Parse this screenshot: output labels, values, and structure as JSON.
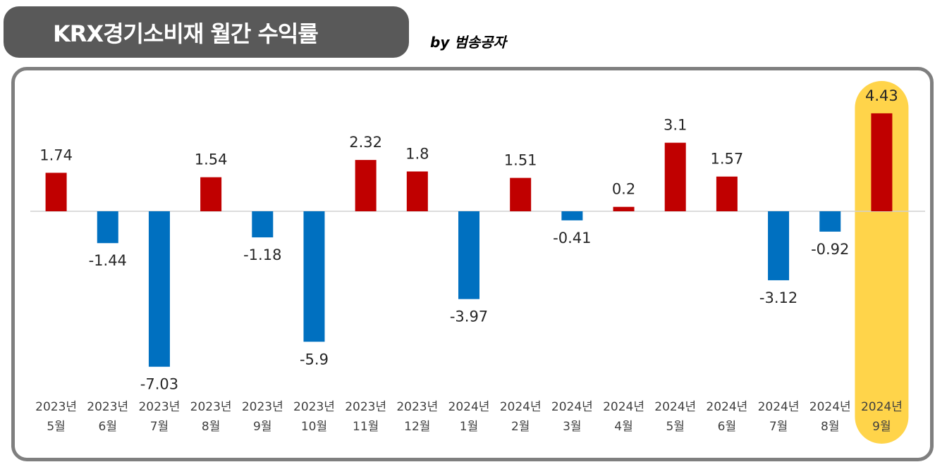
{
  "header": {
    "title": "KRX경기소비재 월간 수익률",
    "byline": "by 범송공자"
  },
  "colors": {
    "positive": "#c00000",
    "negative": "#0070c0",
    "highlight": "#ffd44a",
    "title_bg": "#595959",
    "frame": "#7f7f7f"
  },
  "chart_data": {
    "type": "bar",
    "title": "KRX경기소비재 월간 수익률",
    "categories": [
      [
        "2023년",
        "5월"
      ],
      [
        "2023년",
        "6월"
      ],
      [
        "2023년",
        "7월"
      ],
      [
        "2023년",
        "8월"
      ],
      [
        "2023년",
        "9월"
      ],
      [
        "2023년",
        "10월"
      ],
      [
        "2023년",
        "11월"
      ],
      [
        "2023년",
        "12월"
      ],
      [
        "2024년",
        "1월"
      ],
      [
        "2024년",
        "2월"
      ],
      [
        "2024년",
        "3월"
      ],
      [
        "2024년",
        "4월"
      ],
      [
        "2024년",
        "5월"
      ],
      [
        "2024년",
        "6월"
      ],
      [
        "2024년",
        "7월"
      ],
      [
        "2024년",
        "8월"
      ],
      [
        "2024년",
        "9월"
      ]
    ],
    "values": [
      1.74,
      -1.44,
      -7.03,
      1.54,
      -1.18,
      -5.9,
      2.32,
      1.8,
      -3.97,
      1.51,
      -0.41,
      0.2,
      3.1,
      1.57,
      -3.12,
      -0.92,
      4.43
    ],
    "value_labels": [
      "1.74",
      "-1.44",
      "-7.03",
      "1.54",
      "-1.18",
      "-5.9",
      "2.32",
      "1.8",
      "-3.97",
      "1.51",
      "-0.41",
      "0.2",
      "3.1",
      "1.57",
      "-3.12",
      "-0.92",
      "4.43"
    ],
    "highlighted_index": 16,
    "xlabel": "",
    "ylabel": "",
    "grid": false,
    "legend": "none"
  }
}
